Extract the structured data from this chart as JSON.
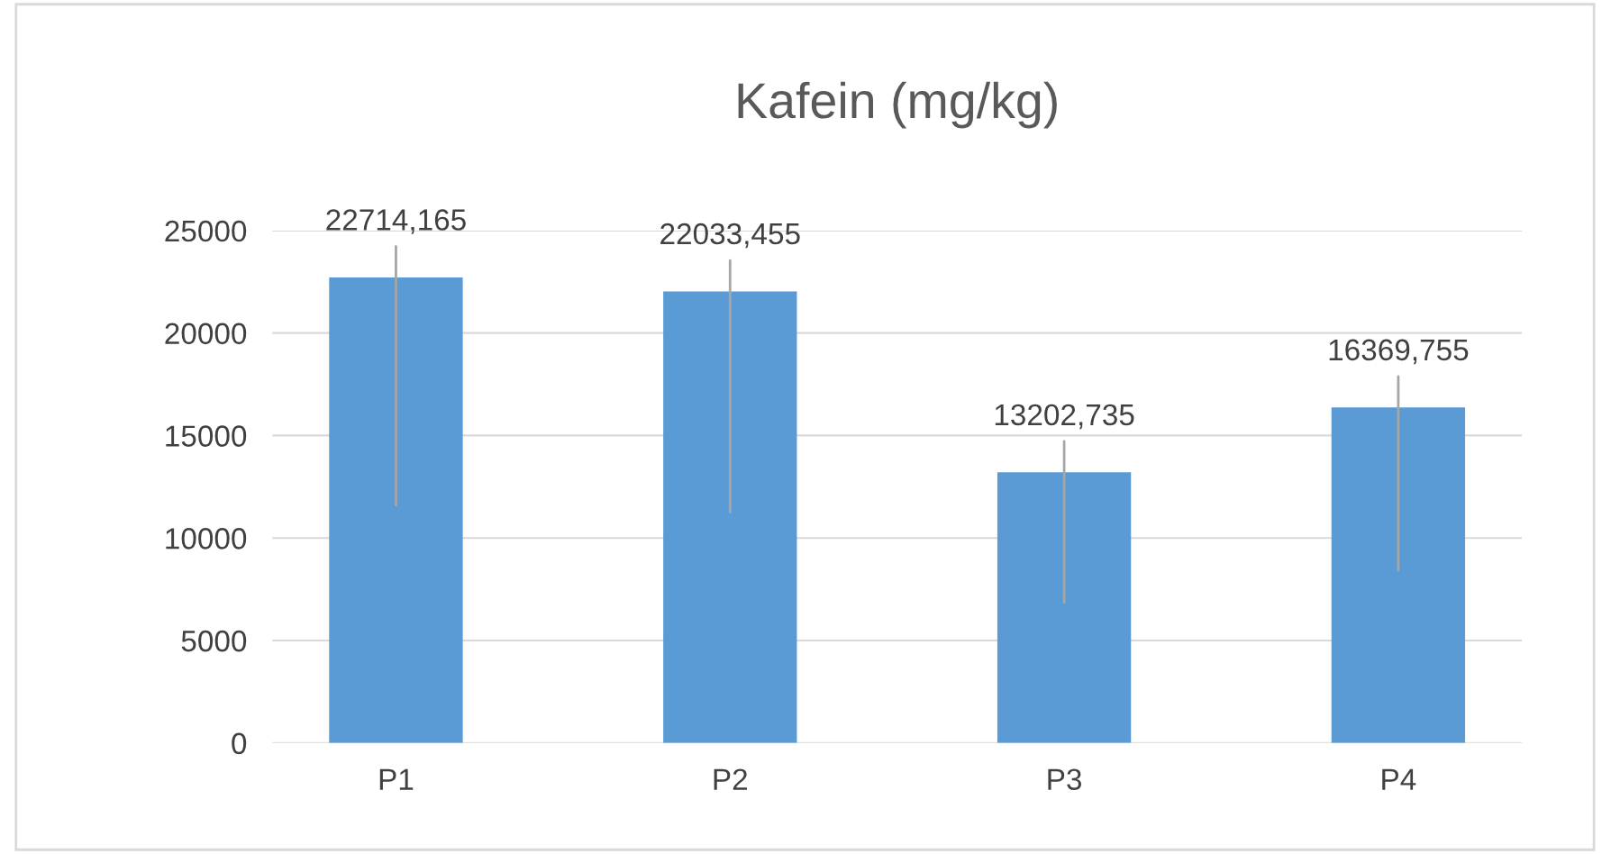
{
  "chart_data": {
    "type": "bar",
    "title": "Kafein (mg/kg)",
    "categories": [
      "P1",
      "P2",
      "P3",
      "P4"
    ],
    "values": [
      22714.165,
      22033.455,
      13202.735,
      16369.755
    ],
    "value_labels": [
      "22714,165",
      "22033,455",
      "13202,735",
      "16369,755"
    ],
    "color": "#5b9bd5",
    "ylim": [
      0,
      25000
    ],
    "yticks": [
      0,
      5000,
      10000,
      15000,
      20000,
      25000
    ],
    "grid": "y"
  }
}
